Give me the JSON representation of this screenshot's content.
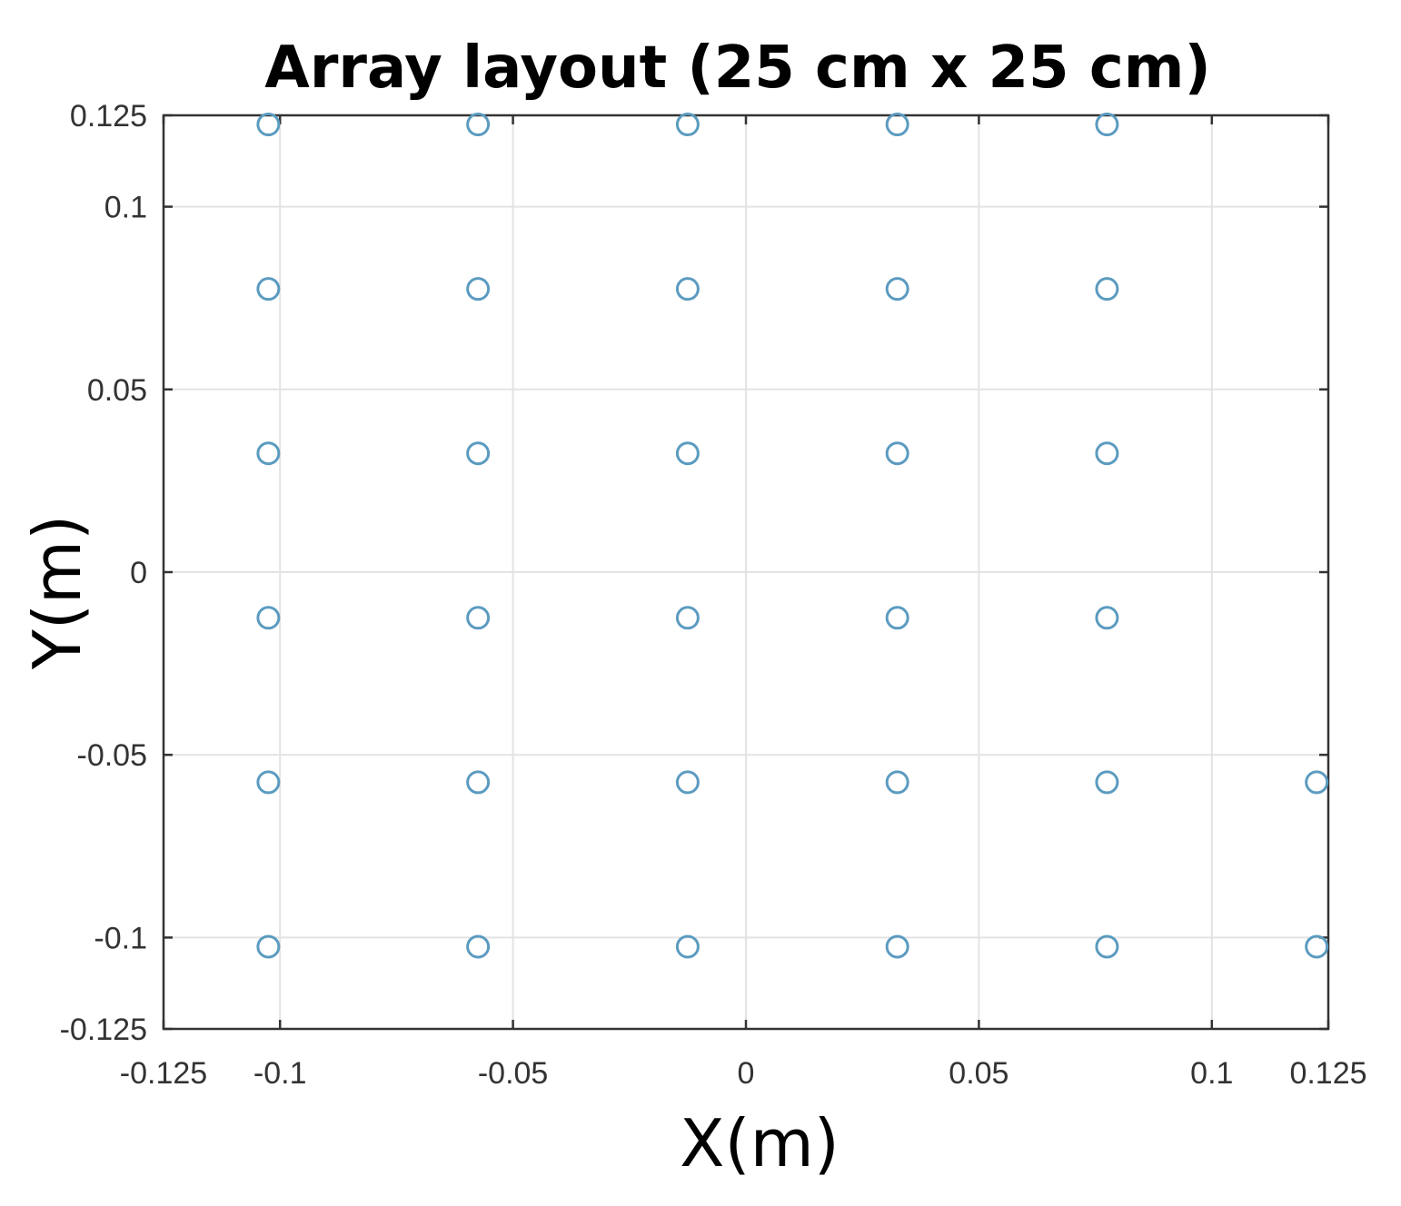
{
  "chart_data": {
    "type": "scatter",
    "title": "Array layout (25 cm x 25 cm)",
    "xlabel": "X(m)",
    "ylabel": "Y(m)",
    "xlim": [
      -0.125,
      0.125
    ],
    "ylim": [
      -0.125,
      0.125
    ],
    "x_ticks": [
      -0.125,
      -0.1,
      -0.05,
      0,
      0.05,
      0.1,
      0.125
    ],
    "x_tick_labels": [
      "-0.125",
      "-0.1",
      "-0.05",
      "0",
      "0.05",
      "0.1",
      "0.125"
    ],
    "y_ticks": [
      0.125,
      0.1,
      0.05,
      0,
      -0.05,
      -0.1,
      -0.125
    ],
    "y_tick_labels": [
      "0.125",
      "0.1",
      "0.05",
      "0",
      "-0.05",
      "-0.1",
      "-0.125"
    ],
    "grid": true,
    "marker": "open-circle",
    "marker_color": "#5b9bc0",
    "points": {
      "x": [
        -0.1025,
        -0.0575,
        -0.0125,
        0.0325,
        0.0775,
        -0.1025,
        -0.0575,
        -0.0125,
        0.0325,
        0.0775,
        -0.1025,
        -0.0575,
        -0.0125,
        0.0325,
        0.0775,
        -0.1025,
        -0.0575,
        -0.0125,
        0.0325,
        0.0775,
        -0.1025,
        -0.0575,
        -0.0125,
        0.0325,
        0.0775,
        0.1225,
        -0.1025,
        -0.0575,
        -0.0125,
        0.0325,
        0.0775,
        0.1225
      ],
      "y": [
        0.1225,
        0.1225,
        0.1225,
        0.1225,
        0.1225,
        0.0775,
        0.0775,
        0.0775,
        0.0775,
        0.0775,
        0.0325,
        0.0325,
        0.0325,
        0.0325,
        0.0325,
        -0.0125,
        -0.0125,
        -0.0125,
        -0.0125,
        -0.0125,
        -0.0575,
        -0.0575,
        -0.0575,
        -0.0575,
        -0.0575,
        -0.0575,
        -0.1025,
        -0.1025,
        -0.1025,
        -0.1025,
        -0.1025,
        -0.1025
      ]
    }
  }
}
